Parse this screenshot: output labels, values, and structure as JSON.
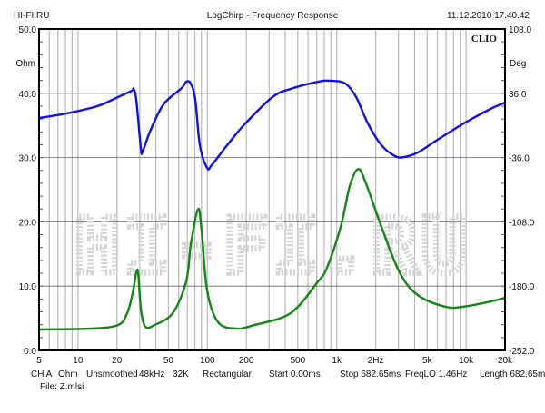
{
  "header": {
    "site": "HI-FI.RU",
    "title": "LogChirp - Frequency Response",
    "datetime": "11.12.2010 17.40.42"
  },
  "brand": "CLIO",
  "watermark": "HI-FI.RU",
  "footer": {
    "params": [
      "CH A",
      "Ohm",
      "Unsmoothed",
      "48kHz",
      "32K",
      "Rectangular",
      "Start 0.00ms",
      "Stop 682.65ms",
      "FreqLO 1.46Hz",
      "Length 682.65ms"
    ],
    "file": "File: Z.mlsi"
  },
  "colors": {
    "impedance": "#118811",
    "phase": "#1010ee",
    "grid": "#b8b8b8",
    "major_grid": "#666666"
  },
  "chart_data": {
    "type": "line",
    "title": "LogChirp - Frequency Response",
    "xscale": "log",
    "xlim": [
      5,
      20000
    ],
    "x_ticks": [
      5,
      10,
      20,
      50,
      100,
      200,
      500,
      1000,
      2000,
      5000,
      10000,
      20000
    ],
    "x_tick_labels": [
      "5",
      "10",
      "20",
      "50",
      "100",
      "200",
      "500",
      "1k",
      "2Hz",
      "5k",
      "10k",
      "20k"
    ],
    "left_axis": {
      "label": "Ohm",
      "ylim": [
        0,
        50
      ],
      "tick_labels": [
        "50.0",
        "40.0",
        "30.0",
        "20.0",
        "10.0",
        "0.0"
      ],
      "ticks": [
        50,
        40,
        30,
        20,
        10,
        0
      ]
    },
    "right_axis": {
      "label": "Deg",
      "ylim": [
        -252,
        108
      ],
      "tick_labels": [
        "108.0",
        "36.0",
        "-36.0",
        "-108.0",
        "-180.0",
        "-252.0"
      ],
      "ticks": [
        108,
        36,
        -36,
        -108,
        -180,
        -252
      ]
    },
    "grid": true,
    "series": [
      {
        "name": "Impedance",
        "axis": "left",
        "color": "#118811",
        "points": [
          [
            5,
            3.25
          ],
          [
            12.6,
            3.39
          ],
          [
            20.4,
            3.95
          ],
          [
            24,
            5.8
          ],
          [
            26.5,
            9
          ],
          [
            28.2,
            12.1
          ],
          [
            29.2,
            12.0
          ],
          [
            30.6,
            6.5
          ],
          [
            33.2,
            3.67
          ],
          [
            39,
            3.95
          ],
          [
            54,
            5.8
          ],
          [
            68.6,
            10.7
          ],
          [
            74.4,
            16.4
          ],
          [
            84.7,
            22.0
          ],
          [
            90.4,
            18.5
          ],
          [
            99.6,
            9.3
          ],
          [
            121,
            4.4
          ],
          [
            167,
            3.39
          ],
          [
            231,
            3.95
          ],
          [
            440,
            5.8
          ],
          [
            716,
            10.7
          ],
          [
            842,
            12.9
          ],
          [
            1072,
            19.2
          ],
          [
            1262,
            25.6
          ],
          [
            1459,
            28.2
          ],
          [
            1660,
            26.3
          ],
          [
            2218,
            19.2
          ],
          [
            3068,
            12.1
          ],
          [
            4238,
            8.6
          ],
          [
            6886,
            6.8
          ],
          [
            9516,
            6.8
          ],
          [
            15450,
            7.6
          ],
          [
            20000,
            8.2
          ]
        ]
      },
      {
        "name": "Phase",
        "axis": "right",
        "color": "#1010ee",
        "points": [
          [
            5,
            8.3
          ],
          [
            8.1,
            13.4
          ],
          [
            14.1,
            21.6
          ],
          [
            20.4,
            31.8
          ],
          [
            26,
            38.8
          ],
          [
            26.9,
            40.9
          ],
          [
            28.2,
            28.7
          ],
          [
            30.6,
            -25.2
          ],
          [
            31.6,
            -29.3
          ],
          [
            36,
            -6.9
          ],
          [
            45.8,
            23.6
          ],
          [
            63.3,
            41.9
          ],
          [
            68.6,
            49
          ],
          [
            74.4,
            47
          ],
          [
            80.7,
            28.7
          ],
          [
            87.5,
            -22.2
          ],
          [
            99.6,
            -47.6
          ],
          [
            108,
            -44.5
          ],
          [
            142,
            -22.2
          ],
          [
            196,
            2
          ],
          [
            319,
            31.8
          ],
          [
            440,
            40.9
          ],
          [
            716,
            49
          ],
          [
            912,
            50
          ],
          [
            1164,
            47
          ],
          [
            1412,
            31.8
          ],
          [
            1743,
            2
          ],
          [
            2218,
            -22.2
          ],
          [
            2830,
            -34.4
          ],
          [
            3327,
            -35.4
          ],
          [
            4238,
            -30.3
          ],
          [
            5861,
            -17.1
          ],
          [
            9516,
            2
          ],
          [
            15450,
            18.5
          ],
          [
            20000,
            25.6
          ]
        ]
      }
    ]
  }
}
